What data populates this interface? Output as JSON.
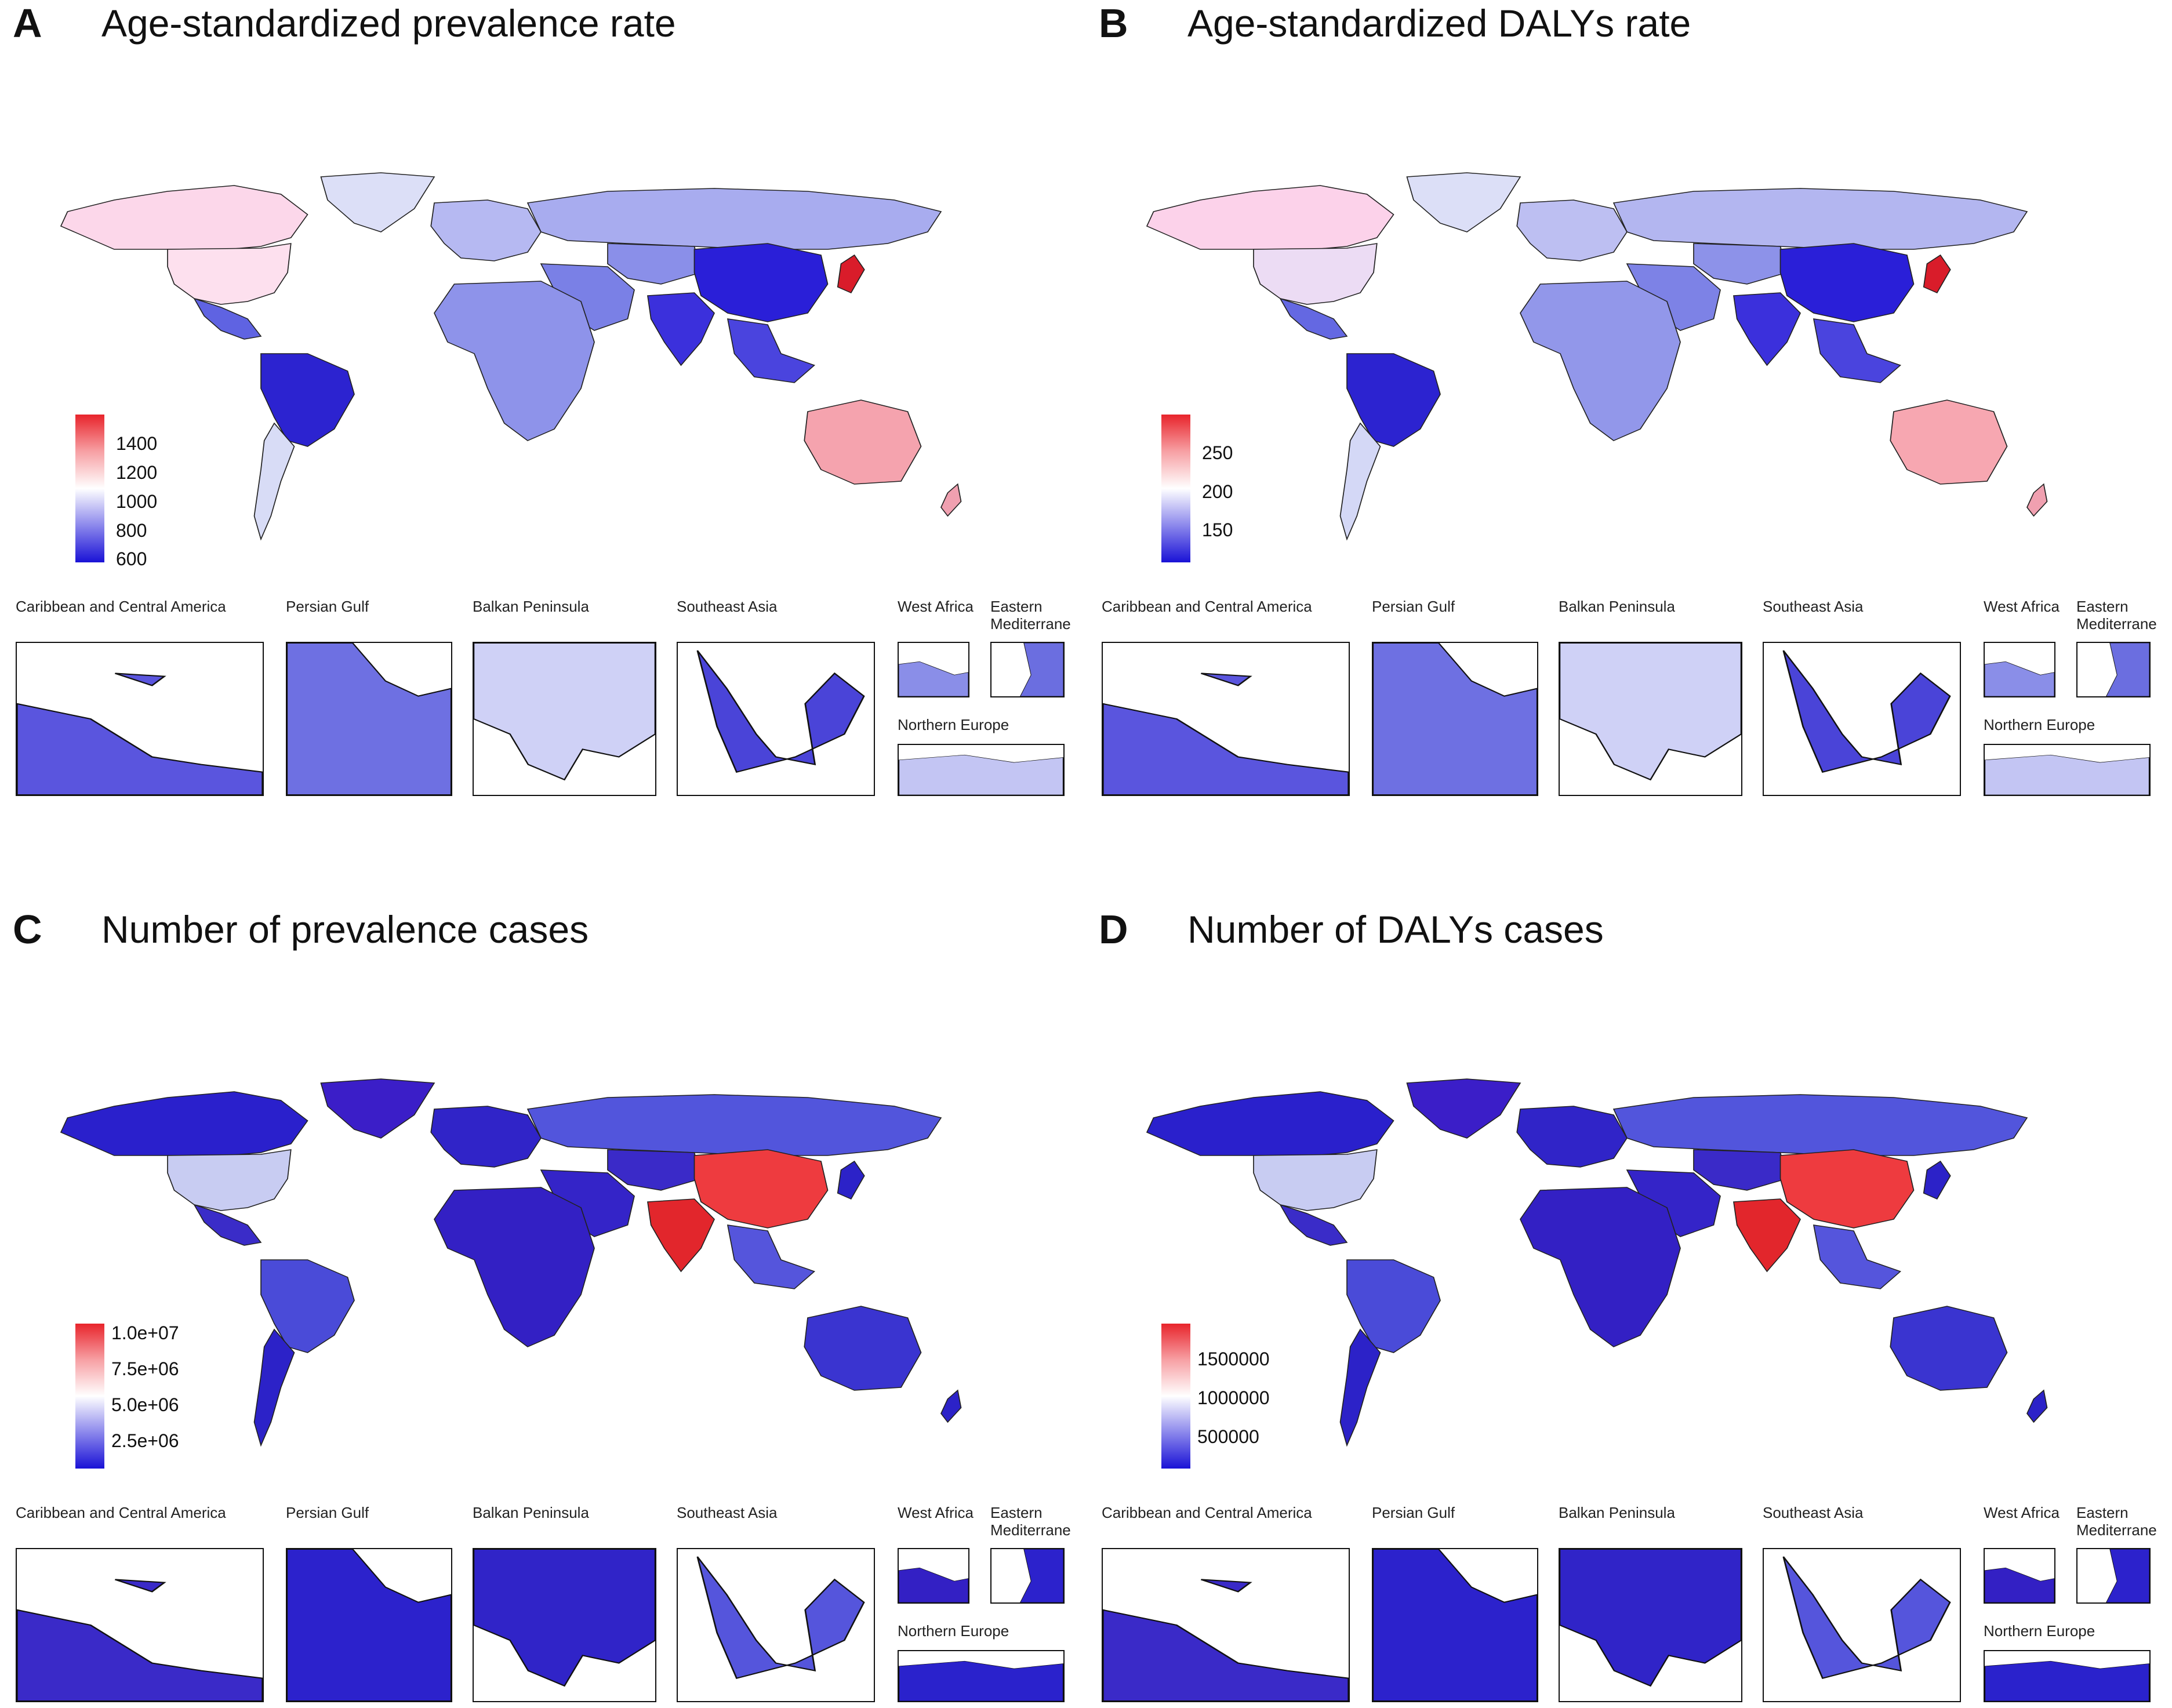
{
  "panels": [
    {
      "letter": "A",
      "title": "Age-standardized prevalence rate",
      "legend": {
        "ticks": [
          "1400",
          "1200",
          "1000",
          "800",
          "600"
        ],
        "colors": {
          "high": "#e8242b",
          "mid": "#ffffff",
          "low": "#1a12d6"
        }
      },
      "regions": {
        "usa": "#fde0ee",
        "canada": "#fcd7ea",
        "greenland": "#dcdff7",
        "russia": "#a8acef",
        "europe": "#b6b9f2",
        "china": "#2a1fd8",
        "india": "#3b30dc",
        "brazil": "#2c23d0",
        "argentina": "#d8dcf6",
        "africa": "#8e93ea",
        "australia": "#f5a3ae",
        "japan": "#d91c2a",
        "middle_east": "#7a80e6",
        "se_asia": "#4a44de",
        "mexico": "#5f63e2",
        "central_asia": "#8a8fe9",
        "nz": "#f0a0b0"
      }
    },
    {
      "letter": "B",
      "title": "Age-standardized DALYs rate",
      "legend": {
        "ticks": [
          "250",
          "200",
          "150"
        ],
        "colors": {
          "high": "#e8242b",
          "mid": "#ffffff",
          "low": "#1a12d6"
        }
      },
      "regions": {
        "usa": "#ecdcf4",
        "canada": "#fcd2ea",
        "greenland": "#dcdff7",
        "russia": "#b3b6f0",
        "europe": "#bdbff2",
        "china": "#2a1fd8",
        "india": "#3b30dc",
        "brazil": "#2c23d0",
        "argentina": "#d4d8f6",
        "africa": "#9297ea",
        "australia": "#f7a7b1",
        "japan": "#d91c2a",
        "middle_east": "#7d82e6",
        "se_asia": "#4a44de",
        "mexico": "#6468e2",
        "central_asia": "#8d92e9",
        "nz": "#f0a0b0"
      }
    },
    {
      "letter": "C",
      "title": "Number of prevalence cases",
      "legend": {
        "ticks": [
          "1.0e+07",
          "7.5e+06",
          "5.0e+06",
          "2.5e+06"
        ],
        "colors": {
          "high": "#e8242b",
          "mid": "#ffffff",
          "low": "#1a12d6"
        }
      },
      "regions": {
        "usa": "#c8ccf2",
        "canada": "#2a20cc",
        "greenland": "#3b1ec8",
        "russia": "#5255dc",
        "europe": "#3024c8",
        "china": "#ee3b3f",
        "india": "#e2262c",
        "brazil": "#4a4bd8",
        "argentina": "#2c22c8",
        "africa": "#3320c4",
        "australia": "#3a34d0",
        "japan": "#2c22c8",
        "middle_east": "#3424c8",
        "se_asia": "#5555dc",
        "mexico": "#3a2cc8",
        "central_asia": "#3a2ac8",
        "nz": "#2c22c8"
      }
    },
    {
      "letter": "D",
      "title": "Number of DALYs cases",
      "legend": {
        "ticks": [
          "1500000",
          "1000000",
          "500000"
        ],
        "colors": {
          "high": "#e8242b",
          "mid": "#ffffff",
          "low": "#1a12d6"
        }
      },
      "regions": {
        "usa": "#c8ccf2",
        "canada": "#2a20cc",
        "greenland": "#3b1ec8",
        "russia": "#5255dc",
        "europe": "#3024c8",
        "china": "#ee3b3f",
        "india": "#e2262c",
        "brazil": "#4a4bd8",
        "argentina": "#2c22c8",
        "africa": "#3320c4",
        "australia": "#3a34d0",
        "japan": "#2c22c8",
        "middle_east": "#3424c8",
        "se_asia": "#5555dc",
        "mexico": "#3a2cc8",
        "central_asia": "#3a2ac8",
        "nz": "#2c22c8"
      }
    }
  ],
  "insets": {
    "caribbean": "Caribbean and Central America",
    "persian_gulf": "Persian Gulf",
    "balkan": "Balkan Peninsula",
    "southeast_asia": "Southeast Asia",
    "west_africa": "West Africa",
    "eastern_med": "Eastern Mediterrane",
    "northern_europe": "Northern Europe"
  },
  "inset_colors": [
    {
      "caribbean": "#5a55de",
      "persian_gulf": "#6e70e2",
      "balkan": "#cfd1f6",
      "southeast_asia": "#4a44d8",
      "west_africa": "#8a8ee8",
      "eastern_med": "#6b6ee0",
      "northern_europe": "#c3c5f3"
    },
    {
      "caribbean": "#5a55de",
      "persian_gulf": "#6e70e2",
      "balkan": "#cfd1f6",
      "southeast_asia": "#4a44d8",
      "west_africa": "#8a8ee8",
      "eastern_med": "#6b6ee0",
      "northern_europe": "#c3c5f3"
    },
    {
      "caribbean": "#3a2ac8",
      "persian_gulf": "#2c22cc",
      "balkan": "#3024c8",
      "southeast_asia": "#5555dc",
      "west_africa": "#3320c4",
      "eastern_med": "#2c22cc",
      "northern_europe": "#2a22cc"
    },
    {
      "caribbean": "#3a2ac8",
      "persian_gulf": "#2c22cc",
      "balkan": "#3024c8",
      "southeast_asia": "#5555dc",
      "west_africa": "#3320c4",
      "eastern_med": "#2c22cc",
      "northern_europe": "#2a22cc"
    }
  ]
}
